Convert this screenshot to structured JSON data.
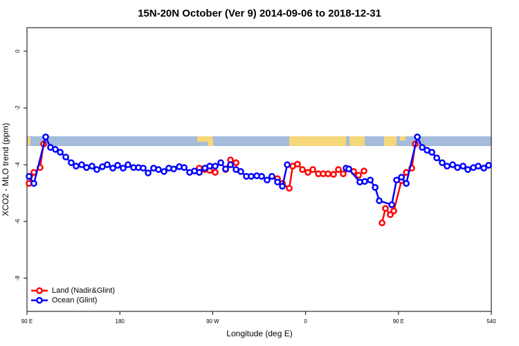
{
  "chart_data": {
    "type": "line",
    "title": "15N-20N October (Ver 9)   2014-09-06 to 2018-12-31",
    "x_label": "Longitude (deg E)",
    "y_label": "XCO2 - MLO trend (ppm)",
    "xlim": [
      90,
      540
    ],
    "ylim": [
      -9.17,
      0.83
    ],
    "xticks": [
      {
        "value": 90,
        "label": "90 E"
      },
      180,
      {
        "value": 270,
        "label": "90 W"
      },
      {
        "value": 360,
        "label": "0"
      },
      {
        "value": 450,
        "label": "90 E"
      },
      540
    ],
    "yticks": [
      0,
      -2,
      -4,
      -6,
      -8
    ],
    "legend": "bottom-left",
    "series": [
      {
        "name": "Land (Nadir&Glint)",
        "color": "#ff0000",
        "x": [
          92.0,
          96.7,
          102.7,
          106.1,
          null,
          257.0,
          262.4,
          267.1,
          272.4,
          null,
          282.5,
          287.2,
          292.6,
          null,
          332.8,
          337.5,
          344.2,
          347.5,
          352.2,
          356.9,
          362.3,
          367.0,
          372.4,
          377.1,
          381.8,
          387.1,
          391.8,
          396.5,
          401.9,
          406.6,
          411.3,
          416.6,
          null,
          434.1,
          437.4,
          442.1,
          445.5,
          452.9,
          457.6,
          462.9,
          466.3
        ],
        "values": [
          -4.66,
          -4.27,
          -4.1,
          -3.27,
          null,
          -4.12,
          -4.17,
          -4.2,
          -4.27,
          null,
          -4.17,
          -3.83,
          -3.93,
          null,
          -4.49,
          -4.66,
          -4.83,
          -4.05,
          -3.98,
          -4.17,
          -4.27,
          -4.17,
          -4.32,
          -4.32,
          -4.32,
          -4.34,
          -4.17,
          -4.32,
          -4.15,
          -4.24,
          -4.37,
          -4.22,
          null,
          -6.05,
          -5.54,
          -5.76,
          -5.63,
          -4.56,
          -4.27,
          -4.12,
          -3.27
        ]
      },
      {
        "name": "Ocean (Glint)",
        "color": "#0000ff",
        "x": [
          92.0,
          96.7,
          108.1,
          112.8,
          117.5,
          122.2,
          127.6,
          132.9,
          137.6,
          143.0,
          147.7,
          153.0,
          157.7,
          163.1,
          167.8,
          173.2,
          177.9,
          183.2,
          187.9,
          193.3,
          198.0,
          202.7,
          207.4,
          212.7,
          217.4,
          222.8,
          227.5,
          232.2,
          237.6,
          242.3,
          247.6,
          252.3,
          257.0,
          262.4,
          267.1,
          272.4,
          277.8,
          282.5,
          287.2,
          292.6,
          297.2,
          302.6,
          307.3,
          312.7,
          317.4,
          322.7,
          327.4,
          332.8,
          337.5,
          342.2,
          null,
          399.2,
          401.9,
          412.6,
          417.3,
          422.7,
          427.4,
          431.4,
          443.5,
          448.2,
          452.9,
          457.6,
          468.3,
          473.0,
          477.7,
          482.4,
          487.1,
          492.4,
          497.1,
          502.5,
          507.2,
          512.6,
          517.2,
          522.6,
          527.3,
          532.7,
          537.4
        ],
        "values": [
          -4.41,
          -4.66,
          -3.02,
          -3.39,
          -3.46,
          -3.56,
          -3.73,
          -3.93,
          -4.05,
          -4.0,
          -4.1,
          -4.05,
          -4.17,
          -4.07,
          -4.0,
          -4.12,
          -4.02,
          -4.12,
          -4.0,
          -4.1,
          -4.1,
          -4.12,
          -4.29,
          -4.12,
          -4.17,
          -4.24,
          -4.12,
          -4.15,
          -4.07,
          -4.1,
          -4.27,
          -4.22,
          -4.27,
          -4.12,
          -4.05,
          -4.05,
          -3.93,
          -4.15,
          -4.0,
          -4.17,
          -4.24,
          -4.41,
          -4.41,
          -4.39,
          -4.41,
          -4.54,
          -4.41,
          -4.61,
          -4.76,
          -4.0,
          null,
          -4.12,
          -4.15,
          -4.61,
          -4.59,
          -4.54,
          -4.8,
          -5.27,
          -5.41,
          -4.54,
          -4.44,
          -4.66,
          -3.02,
          -3.39,
          -3.49,
          -3.56,
          -3.76,
          -3.93,
          -4.05,
          -4.0,
          -4.1,
          -4.05,
          -4.17,
          -4.1,
          -4.05,
          -4.12,
          -4.02
        ]
      }
    ]
  }
}
